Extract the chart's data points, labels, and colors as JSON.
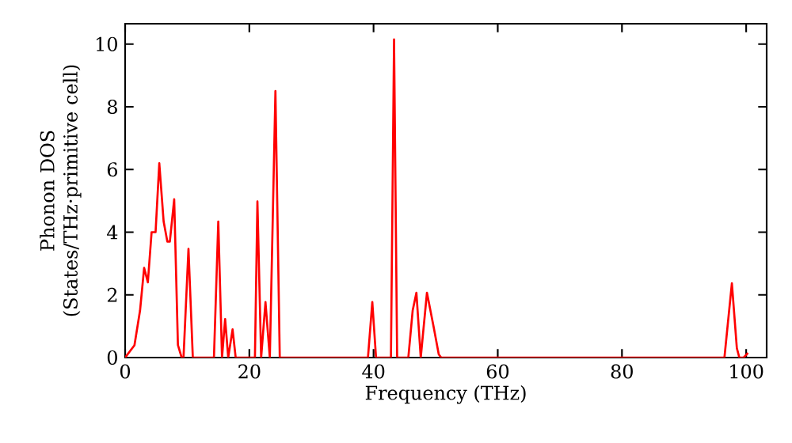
{
  "chart_data": {
    "type": "line",
    "xlabel": "Frequency (THz)",
    "ylabel": "Phonon DOS (States/THz·primitive cell)",
    "xlim": [
      0,
      103.3
    ],
    "ylim": [
      0,
      10.65
    ],
    "xticks": [
      0,
      20,
      40,
      60,
      80,
      100
    ],
    "yticks": [
      0,
      2,
      4,
      6,
      8,
      10
    ],
    "marker": "none",
    "line_style": "solid",
    "series": [
      {
        "color": "#ff0000",
        "x": [
          0,
          1.5,
          2.4,
          3.06,
          3.66,
          4.26,
          4.9,
          5.5,
          6.2,
          6.8,
          7.2,
          7.9,
          8.5,
          9.1,
          9.4,
          10.2,
          10.9,
          14.3,
          15.0,
          15.6,
          16.1,
          16.6,
          17.3,
          17.8,
          20.9,
          21.3,
          21.9,
          22.6,
          23.3,
          24.2,
          24.9,
          39.1,
          39.8,
          40.4,
          42.8,
          43.3,
          43.8,
          45.6,
          46.3,
          46.9,
          47.6,
          48.6,
          49.7,
          50.5,
          50.9,
          96.5,
          97.7,
          98.5,
          98.9,
          99.6,
          100.3
        ],
        "values": [
          0,
          0.39,
          1.5,
          2.86,
          2.4,
          4.0,
          4.0,
          6.2,
          4.34,
          3.7,
          3.7,
          5.05,
          0.4,
          0,
          0,
          3.47,
          0,
          0,
          4.34,
          0,
          1.23,
          0,
          0.9,
          0,
          0,
          4.98,
          0,
          1.77,
          0,
          8.5,
          0,
          0,
          1.77,
          0,
          0,
          10.15,
          0,
          0,
          1.5,
          2.07,
          0,
          2.07,
          0.95,
          0.1,
          0,
          0,
          2.37,
          0.3,
          0,
          0,
          0.15
        ]
      }
    ]
  }
}
